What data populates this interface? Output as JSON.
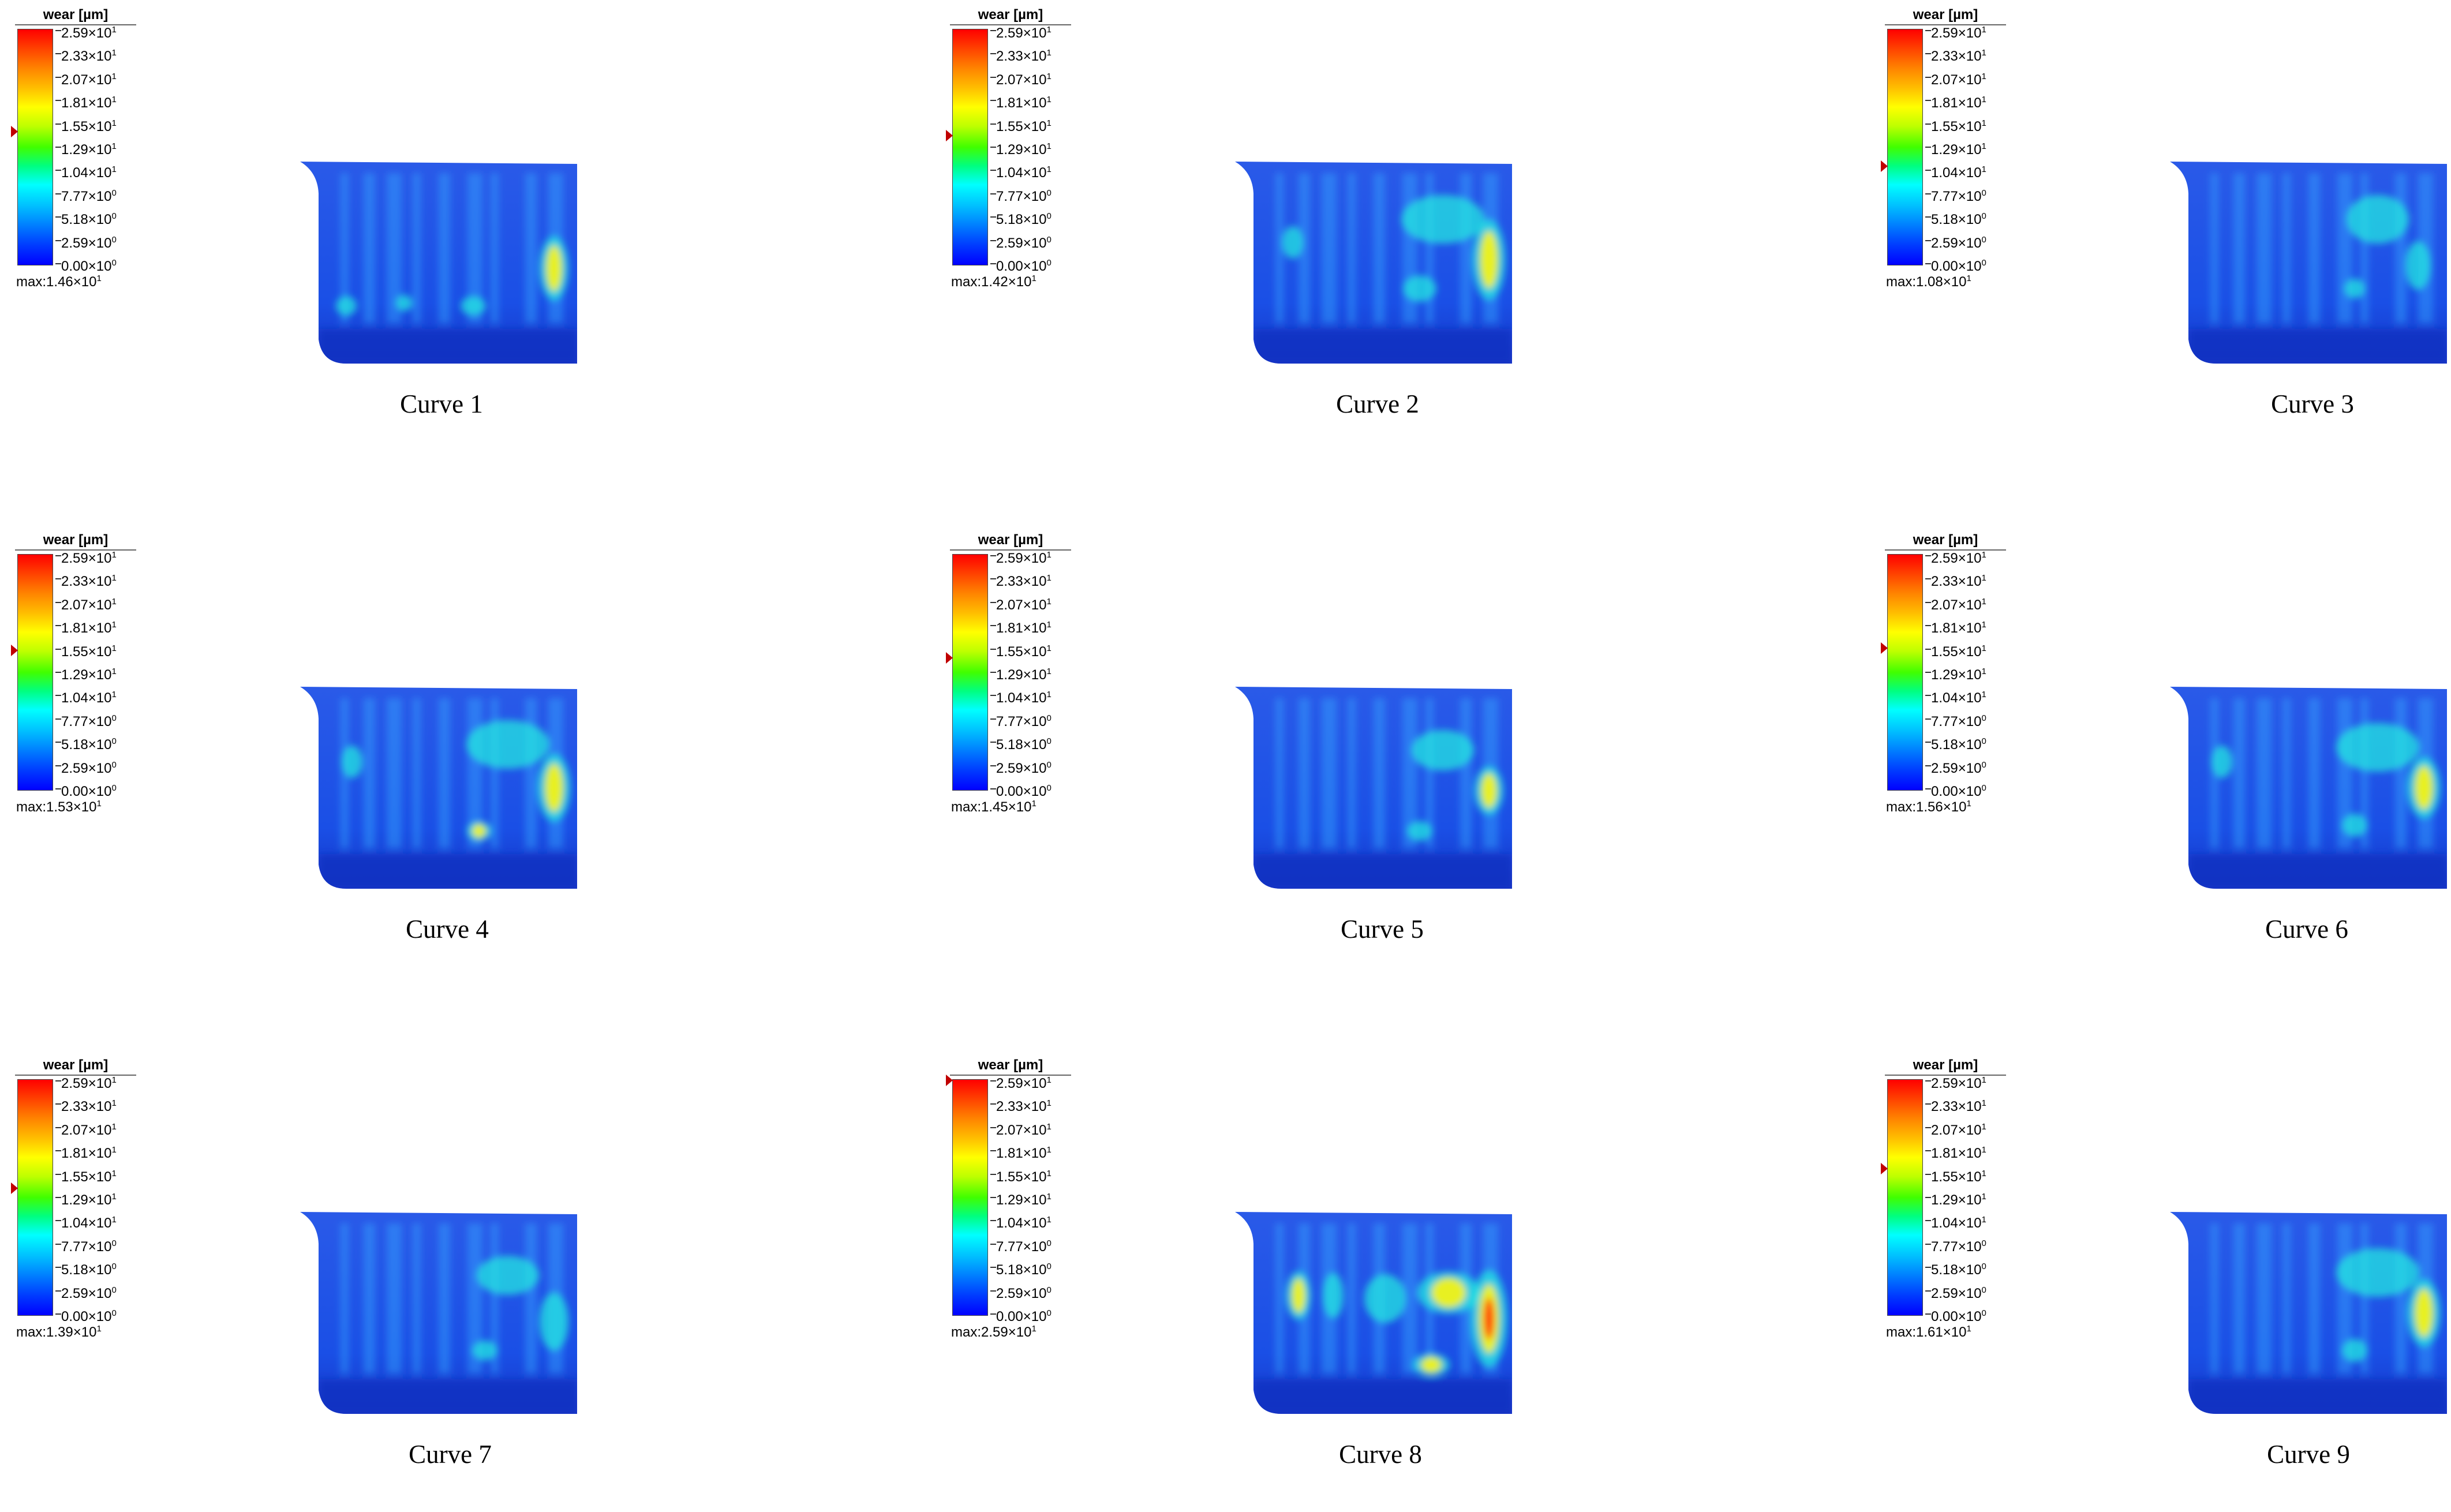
{
  "legend": {
    "title": "wear [µm]",
    "scale": [
      {
        "mantissa": "2.59",
        "exponent": "1"
      },
      {
        "mantissa": "2.33",
        "exponent": "1"
      },
      {
        "mantissa": "2.07",
        "exponent": "1"
      },
      {
        "mantissa": "1.81",
        "exponent": "1"
      },
      {
        "mantissa": "1.55",
        "exponent": "1"
      },
      {
        "mantissa": "1.29",
        "exponent": "1"
      },
      {
        "mantissa": "1.04",
        "exponent": "1"
      },
      {
        "mantissa": "7.77",
        "exponent": "0"
      },
      {
        "mantissa": "5.18",
        "exponent": "0"
      },
      {
        "mantissa": "2.59",
        "exponent": "0"
      },
      {
        "mantissa": "0.00",
        "exponent": "0"
      }
    ],
    "scale_min": 0,
    "scale_max": 25.9
  },
  "panels": [
    {
      "caption": "Curve 1",
      "max_prefix": "max:",
      "max_mantissa": "1.46",
      "max_exponent": "1",
      "max_value": 14.6
    },
    {
      "caption": "Curve 2",
      "max_prefix": "max:",
      "max_mantissa": "1.42",
      "max_exponent": "1",
      "max_value": 14.2
    },
    {
      "caption": "Curve 3",
      "max_prefix": "max:",
      "max_mantissa": "1.08",
      "max_exponent": "1",
      "max_value": 10.8
    },
    {
      "caption": "Curve 4",
      "max_prefix": "max:",
      "max_mantissa": "1.53",
      "max_exponent": "1",
      "max_value": 15.3
    },
    {
      "caption": "Curve 5",
      "max_prefix": "max:",
      "max_mantissa": "1.45",
      "max_exponent": "1",
      "max_value": 14.5
    },
    {
      "caption": "Curve 6",
      "max_prefix": "max:",
      "max_mantissa": "1.56",
      "max_exponent": "1",
      "max_value": 15.6
    },
    {
      "caption": "Curve 7",
      "max_prefix": "max:",
      "max_mantissa": "1.39",
      "max_exponent": "1",
      "max_value": 13.9
    },
    {
      "caption": "Curve 8",
      "max_prefix": "max:",
      "max_mantissa": "2.59",
      "max_exponent": "1",
      "max_value": 25.9
    },
    {
      "caption": "Curve 9",
      "max_prefix": "max:",
      "max_mantissa": "1.61",
      "max_exponent": "1",
      "max_value": 16.1
    }
  ],
  "colors": {
    "base_blue": "#1a4fe6",
    "band_light": "#33a6ff",
    "hotspot_cyan": "#22f0e0",
    "hotspot_yellow": "#e8f020",
    "hotspot_red": "#ff3010",
    "marker": "#c00000"
  }
}
